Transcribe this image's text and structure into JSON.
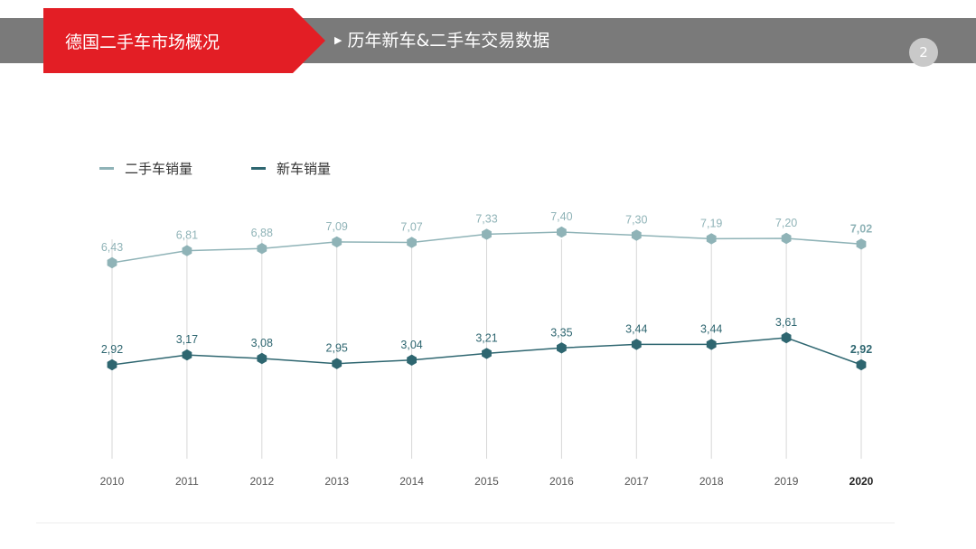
{
  "header": {
    "section_title": "德国二手车市场概况",
    "subtitle": "历年新车&二手车交易数据",
    "page_number": "2",
    "accent_color": "#e31e25",
    "bar_color": "#7a7a7a"
  },
  "legend": {
    "used_label": "二手车销量",
    "new_label": "新车销量"
  },
  "chart_data": {
    "type": "line",
    "title": "历年新车&二手车交易数据",
    "xlabel": "",
    "ylabel": "",
    "categories": [
      "2010",
      "2011",
      "2012",
      "2013",
      "2014",
      "2015",
      "2016",
      "2017",
      "2018",
      "2019",
      "2020"
    ],
    "highlight_category": "2020",
    "grid": "vertical",
    "legend_position": "top-left",
    "series": [
      {
        "name": "二手车销量",
        "color": "#8fb3b7",
        "values": [
          6.43,
          6.81,
          6.88,
          7.09,
          7.07,
          7.33,
          7.4,
          7.3,
          7.19,
          7.2,
          7.02
        ],
        "labels": [
          "6,43",
          "6,81",
          "6,88",
          "7,09",
          "7,07",
          "7,33",
          "7,40",
          "7,30",
          "7,19",
          "7,20",
          "7,02"
        ]
      },
      {
        "name": "新车销量",
        "color": "#2e6670",
        "values": [
          2.92,
          3.17,
          3.08,
          2.95,
          3.04,
          3.21,
          3.35,
          3.44,
          3.44,
          3.61,
          2.92
        ],
        "labels": [
          "2,92",
          "3,17",
          "3,08",
          "2,95",
          "3,04",
          "3,21",
          "3,35",
          "3,44",
          "3,44",
          "3,61",
          "2,92"
        ]
      }
    ]
  }
}
